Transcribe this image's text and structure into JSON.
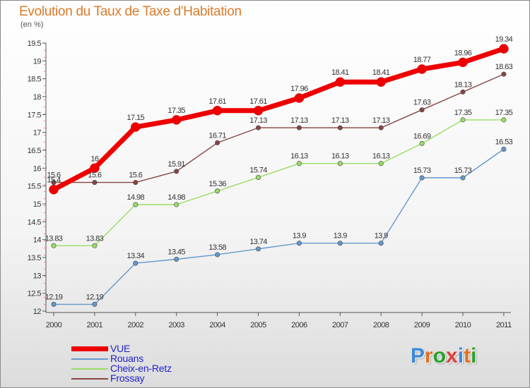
{
  "header": {
    "title": "Evolution du Taux de Taxe d'Habitation",
    "unit": "(en %)"
  },
  "logo": {
    "text": "Proxiti",
    "letters": [
      "P",
      "r",
      "o",
      "x",
      "i",
      "t",
      "i"
    ],
    "colors": [
      "#3a8ad8",
      "#e07020",
      "#2aa02a",
      "#e04040",
      "#3a8ad8",
      "#e07020",
      "#2aa02a"
    ]
  },
  "chart_data": {
    "type": "line",
    "title": "Evolution du Taux de Taxe d'Habitation",
    "ylabel": "(en %)",
    "xlabel": "",
    "x": [
      "2000",
      "2001",
      "2002",
      "2003",
      "2004",
      "2005",
      "2006",
      "2007",
      "2008",
      "2009",
      "2010",
      "2011"
    ],
    "ylim": [
      12,
      19.5
    ],
    "yticks": [
      "12",
      "12.5",
      "13",
      "13.5",
      "14",
      "14.5",
      "15",
      "15.5",
      "16",
      "16.5",
      "17",
      "17.5",
      "18",
      "18.5",
      "19",
      "19.5"
    ],
    "legend_position": "bottom-left",
    "series": [
      {
        "name": "VUE",
        "color": "#ee0000",
        "values": [
          15.4,
          16,
          17.15,
          17.35,
          17.61,
          17.61,
          17.96,
          18.41,
          18.41,
          18.77,
          18.96,
          19.34
        ],
        "labels": [
          "15.4",
          "16",
          "17.15",
          "17.35",
          "17.61",
          "17.61",
          "17.96",
          "18.41",
          "18.41",
          "18.77",
          "18.96",
          "19.34"
        ]
      },
      {
        "name": "Rouans",
        "color": "#6699cc",
        "values": [
          12.19,
          12.19,
          13.34,
          13.45,
          13.58,
          13.74,
          13.9,
          13.9,
          13.9,
          15.73,
          15.73,
          16.53
        ],
        "labels": [
          "12.19",
          "12.19",
          "13.34",
          "13.45",
          "13.58",
          "13.74",
          "13.9",
          "13.9",
          "13.9",
          "15.73",
          "15.73",
          "16.53"
        ]
      },
      {
        "name": "Cheix-en-Retz",
        "color": "#99dd66",
        "values": [
          13.83,
          13.83,
          14.98,
          14.98,
          15.36,
          15.74,
          16.13,
          16.13,
          16.13,
          16.69,
          17.35,
          17.35
        ],
        "labels": [
          "13.83",
          "13.83",
          "14.98",
          "14.98",
          "15.36",
          "15.74",
          "16.13",
          "16.13",
          "16.13",
          "16.69",
          "17.35",
          "17.35"
        ]
      },
      {
        "name": "Frossay",
        "color": "#884444",
        "values": [
          15.6,
          15.6,
          15.6,
          15.91,
          16.71,
          17.13,
          17.13,
          17.13,
          17.13,
          17.63,
          18.13,
          18.63
        ],
        "labels": [
          "15.6",
          "15.6",
          "15.6",
          "15.91",
          "16.71",
          "17.13",
          "17.13",
          "17.13",
          "17.13",
          "17.63",
          "18.13",
          "18.63"
        ]
      }
    ]
  }
}
